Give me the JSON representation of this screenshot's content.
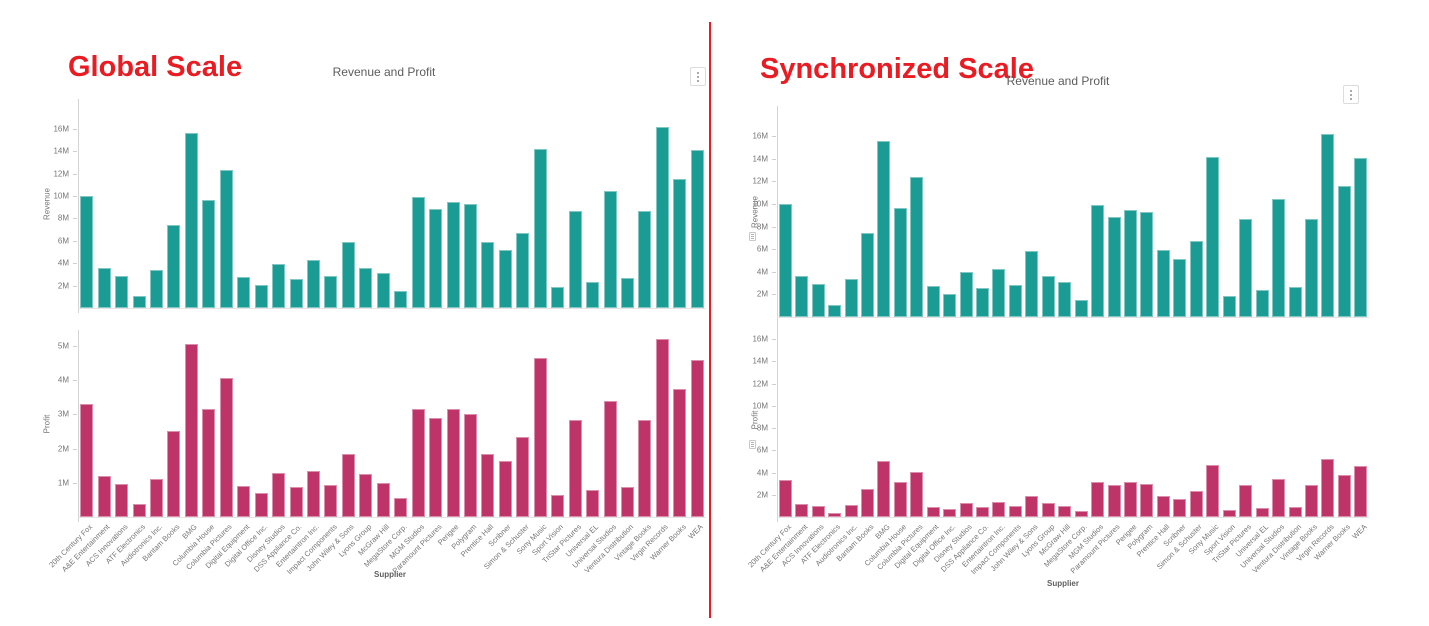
{
  "accent_colors": {
    "heading_red": "#e81c22",
    "revenue_teal": "#1a9c94",
    "profit_pink": "#bf3468"
  },
  "chart_data": [
    {
      "id": "global",
      "type": "bar",
      "heading": "Global Scale",
      "title": "Revenue and Profit",
      "xlabel": "Supplier",
      "menu_icon": "vertical-ellipsis",
      "unit": "M",
      "categories": [
        "20th Century Fox",
        "A&E Entertainment",
        "ACS Innovations",
        "ATF Electronics",
        "Audiotronics Inc.",
        "Bantam Books",
        "BMG",
        "Columbia House",
        "Columbia Pictures",
        "Digital Equipment",
        "Digital Office Inc.",
        "Disney Studios",
        "DSS Appliance Co.",
        "Entertaintron Inc.",
        "Impact Components",
        "John Wiley & Sons",
        "Lyons Group",
        "McGraw Hill",
        "MegaStore Corp.",
        "MGM Studios",
        "Paramount Pictures",
        "Perigee",
        "Polygram",
        "Prentice Hall",
        "Scribner",
        "Simon & Schuster",
        "Sony Music",
        "Sport Vision",
        "TriStar Pictures",
        "Universal EL",
        "Universal Studios",
        "Ventura Distribution",
        "Vintage Books",
        "Virgin Records",
        "Warner Books",
        "WEA"
      ],
      "panes": [
        {
          "name": "Revenue",
          "color": "#1a9c94",
          "ylim": [
            0,
            18.6
          ],
          "yticks": [
            2,
            4,
            6,
            8,
            10,
            12,
            14,
            16
          ],
          "ytick_labels": [
            "2M",
            "4M",
            "6M",
            "8M",
            "10M",
            "12M",
            "14M",
            "16M"
          ],
          "values": [
            10.0,
            3.6,
            2.9,
            1.05,
            3.4,
            7.4,
            15.6,
            9.65,
            12.35,
            2.75,
            2.05,
            3.95,
            2.55,
            4.25,
            2.85,
            5.85,
            3.6,
            3.1,
            1.5,
            9.9,
            8.85,
            9.5,
            9.3,
            5.9,
            5.15,
            6.7,
            14.2,
            1.85,
            8.7,
            2.35,
            10.45,
            2.65,
            8.7,
            16.2,
            11.55,
            14.1
          ]
        },
        {
          "name": "Profit",
          "color": "#bf3468",
          "ylim": [
            0,
            5.5
          ],
          "yticks": [
            1,
            2,
            3,
            4,
            5
          ],
          "ytick_labels": [
            "1M",
            "2M",
            "3M",
            "4M",
            "5M"
          ],
          "values": [
            3.3,
            1.2,
            0.97,
            0.37,
            1.1,
            2.5,
            5.05,
            3.15,
            4.05,
            0.92,
            0.7,
            1.3,
            0.88,
            1.35,
            0.95,
            1.85,
            1.25,
            1.0,
            0.55,
            3.15,
            2.9,
            3.15,
            3.0,
            1.85,
            1.65,
            2.35,
            4.65,
            0.65,
            2.85,
            0.8,
            3.4,
            0.87,
            2.85,
            5.2,
            3.75,
            4.6
          ]
        }
      ]
    },
    {
      "id": "synchronized",
      "type": "bar",
      "heading": "Synchronized Scale",
      "title": "Revenue and Profit",
      "xlabel": "Supplier",
      "menu_icon": "vertical-ellipsis",
      "unit": "M",
      "categories": [
        "20th Century Fox",
        "A&E Entertainment",
        "ACS Innovations",
        "ATF Electronics",
        "Audiotronics Inc.",
        "Bantam Books",
        "BMG",
        "Columbia House",
        "Columbia Pictures",
        "Digital Equipment",
        "Digital Office Inc.",
        "Disney Studios",
        "DSS Appliance Co.",
        "Entertaintron Inc.",
        "Impact Components",
        "John Wiley & Sons",
        "Lyons Group",
        "McGraw Hill",
        "MegaStore Corp.",
        "MGM Studios",
        "Paramount Pictures",
        "Perigee",
        "Polygram",
        "Prentice Hall",
        "Scribner",
        "Simon & Schuster",
        "Sony Music",
        "Sport Vision",
        "TriStar Pictures",
        "Universal EL",
        "Universal Studios",
        "Ventura Distribution",
        "Vintage Books",
        "Virgin Records",
        "Warner Books",
        "WEA"
      ],
      "panes": [
        {
          "name": "Revenue",
          "color": "#1a9c94",
          "handle_icon": "pane-handle",
          "ylim": [
            0,
            18.7
          ],
          "yticks": [
            2,
            4,
            6,
            8,
            10,
            12,
            14,
            16
          ],
          "ytick_labels": [
            "2M",
            "4M",
            "6M",
            "8M",
            "10M",
            "12M",
            "14M",
            "16M"
          ],
          "values": [
            10.0,
            3.6,
            2.9,
            1.05,
            3.4,
            7.4,
            15.6,
            9.65,
            12.35,
            2.75,
            2.05,
            3.95,
            2.55,
            4.25,
            2.85,
            5.85,
            3.6,
            3.1,
            1.5,
            9.9,
            8.85,
            9.5,
            9.3,
            5.9,
            5.15,
            6.7,
            14.2,
            1.85,
            8.7,
            2.35,
            10.45,
            2.65,
            8.7,
            16.2,
            11.55,
            14.1
          ]
        },
        {
          "name": "Profit",
          "color": "#bf3468",
          "handle_icon": "pane-handle",
          "ylim": [
            0,
            17.5
          ],
          "yticks": [
            2,
            4,
            6,
            8,
            10,
            12,
            14,
            16
          ],
          "ytick_labels": [
            "2M",
            "4M",
            "6M",
            "8M",
            "10M",
            "12M",
            "14M",
            "16M"
          ],
          "values": [
            3.3,
            1.2,
            0.97,
            0.37,
            1.1,
            2.5,
            5.05,
            3.15,
            4.05,
            0.92,
            0.7,
            1.3,
            0.88,
            1.35,
            0.95,
            1.85,
            1.25,
            1.0,
            0.55,
            3.15,
            2.9,
            3.15,
            3.0,
            1.85,
            1.65,
            2.35,
            4.65,
            0.65,
            2.85,
            0.8,
            3.4,
            0.87,
            2.85,
            5.2,
            3.75,
            4.6
          ]
        }
      ]
    }
  ]
}
